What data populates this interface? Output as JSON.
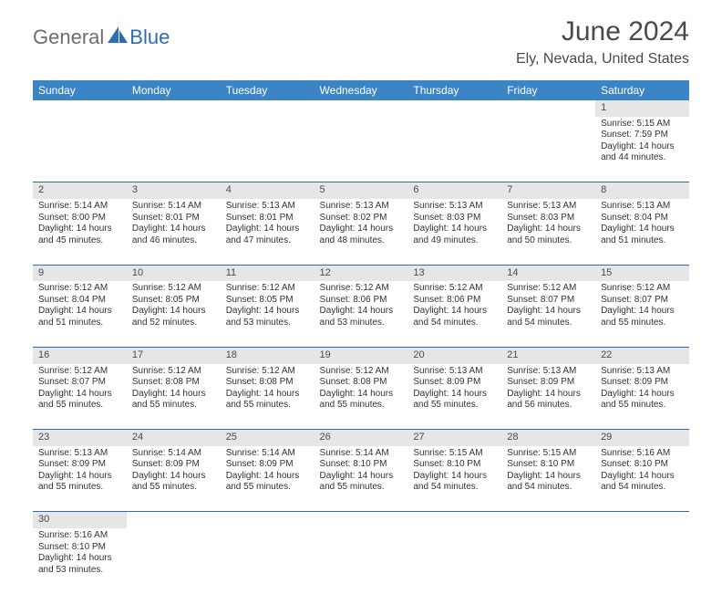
{
  "logo": {
    "part1": "General",
    "part2": "Blue"
  },
  "title": "June 2024",
  "location": "Ely, Nevada, United States",
  "colors": {
    "header_bg": "#3b85c6",
    "header_text": "#ffffff",
    "daynum_bg": "#e6e6e6",
    "border": "#2a6fb5",
    "logo_dark": "#6d6d6d",
    "logo_blue": "#2a6fb5"
  },
  "weekdays": [
    "Sunday",
    "Monday",
    "Tuesday",
    "Wednesday",
    "Thursday",
    "Friday",
    "Saturday"
  ],
  "weeks": [
    [
      null,
      null,
      null,
      null,
      null,
      null,
      {
        "n": "1",
        "sr": "5:15 AM",
        "ss": "7:59 PM",
        "dl": "14 hours and 44 minutes."
      }
    ],
    [
      {
        "n": "2",
        "sr": "5:14 AM",
        "ss": "8:00 PM",
        "dl": "14 hours and 45 minutes."
      },
      {
        "n": "3",
        "sr": "5:14 AM",
        "ss": "8:01 PM",
        "dl": "14 hours and 46 minutes."
      },
      {
        "n": "4",
        "sr": "5:13 AM",
        "ss": "8:01 PM",
        "dl": "14 hours and 47 minutes."
      },
      {
        "n": "5",
        "sr": "5:13 AM",
        "ss": "8:02 PM",
        "dl": "14 hours and 48 minutes."
      },
      {
        "n": "6",
        "sr": "5:13 AM",
        "ss": "8:03 PM",
        "dl": "14 hours and 49 minutes."
      },
      {
        "n": "7",
        "sr": "5:13 AM",
        "ss": "8:03 PM",
        "dl": "14 hours and 50 minutes."
      },
      {
        "n": "8",
        "sr": "5:13 AM",
        "ss": "8:04 PM",
        "dl": "14 hours and 51 minutes."
      }
    ],
    [
      {
        "n": "9",
        "sr": "5:12 AM",
        "ss": "8:04 PM",
        "dl": "14 hours and 51 minutes."
      },
      {
        "n": "10",
        "sr": "5:12 AM",
        "ss": "8:05 PM",
        "dl": "14 hours and 52 minutes."
      },
      {
        "n": "11",
        "sr": "5:12 AM",
        "ss": "8:05 PM",
        "dl": "14 hours and 53 minutes."
      },
      {
        "n": "12",
        "sr": "5:12 AM",
        "ss": "8:06 PM",
        "dl": "14 hours and 53 minutes."
      },
      {
        "n": "13",
        "sr": "5:12 AM",
        "ss": "8:06 PM",
        "dl": "14 hours and 54 minutes."
      },
      {
        "n": "14",
        "sr": "5:12 AM",
        "ss": "8:07 PM",
        "dl": "14 hours and 54 minutes."
      },
      {
        "n": "15",
        "sr": "5:12 AM",
        "ss": "8:07 PM",
        "dl": "14 hours and 55 minutes."
      }
    ],
    [
      {
        "n": "16",
        "sr": "5:12 AM",
        "ss": "8:07 PM",
        "dl": "14 hours and 55 minutes."
      },
      {
        "n": "17",
        "sr": "5:12 AM",
        "ss": "8:08 PM",
        "dl": "14 hours and 55 minutes."
      },
      {
        "n": "18",
        "sr": "5:12 AM",
        "ss": "8:08 PM",
        "dl": "14 hours and 55 minutes."
      },
      {
        "n": "19",
        "sr": "5:12 AM",
        "ss": "8:08 PM",
        "dl": "14 hours and 55 minutes."
      },
      {
        "n": "20",
        "sr": "5:13 AM",
        "ss": "8:09 PM",
        "dl": "14 hours and 55 minutes."
      },
      {
        "n": "21",
        "sr": "5:13 AM",
        "ss": "8:09 PM",
        "dl": "14 hours and 56 minutes."
      },
      {
        "n": "22",
        "sr": "5:13 AM",
        "ss": "8:09 PM",
        "dl": "14 hours and 55 minutes."
      }
    ],
    [
      {
        "n": "23",
        "sr": "5:13 AM",
        "ss": "8:09 PM",
        "dl": "14 hours and 55 minutes."
      },
      {
        "n": "24",
        "sr": "5:14 AM",
        "ss": "8:09 PM",
        "dl": "14 hours and 55 minutes."
      },
      {
        "n": "25",
        "sr": "5:14 AM",
        "ss": "8:09 PM",
        "dl": "14 hours and 55 minutes."
      },
      {
        "n": "26",
        "sr": "5:14 AM",
        "ss": "8:10 PM",
        "dl": "14 hours and 55 minutes."
      },
      {
        "n": "27",
        "sr": "5:15 AM",
        "ss": "8:10 PM",
        "dl": "14 hours and 54 minutes."
      },
      {
        "n": "28",
        "sr": "5:15 AM",
        "ss": "8:10 PM",
        "dl": "14 hours and 54 minutes."
      },
      {
        "n": "29",
        "sr": "5:16 AM",
        "ss": "8:10 PM",
        "dl": "14 hours and 54 minutes."
      }
    ],
    [
      {
        "n": "30",
        "sr": "5:16 AM",
        "ss": "8:10 PM",
        "dl": "14 hours and 53 minutes."
      },
      null,
      null,
      null,
      null,
      null,
      null
    ]
  ],
  "labels": {
    "sunrise": "Sunrise: ",
    "sunset": "Sunset: ",
    "daylight": "Daylight: "
  }
}
